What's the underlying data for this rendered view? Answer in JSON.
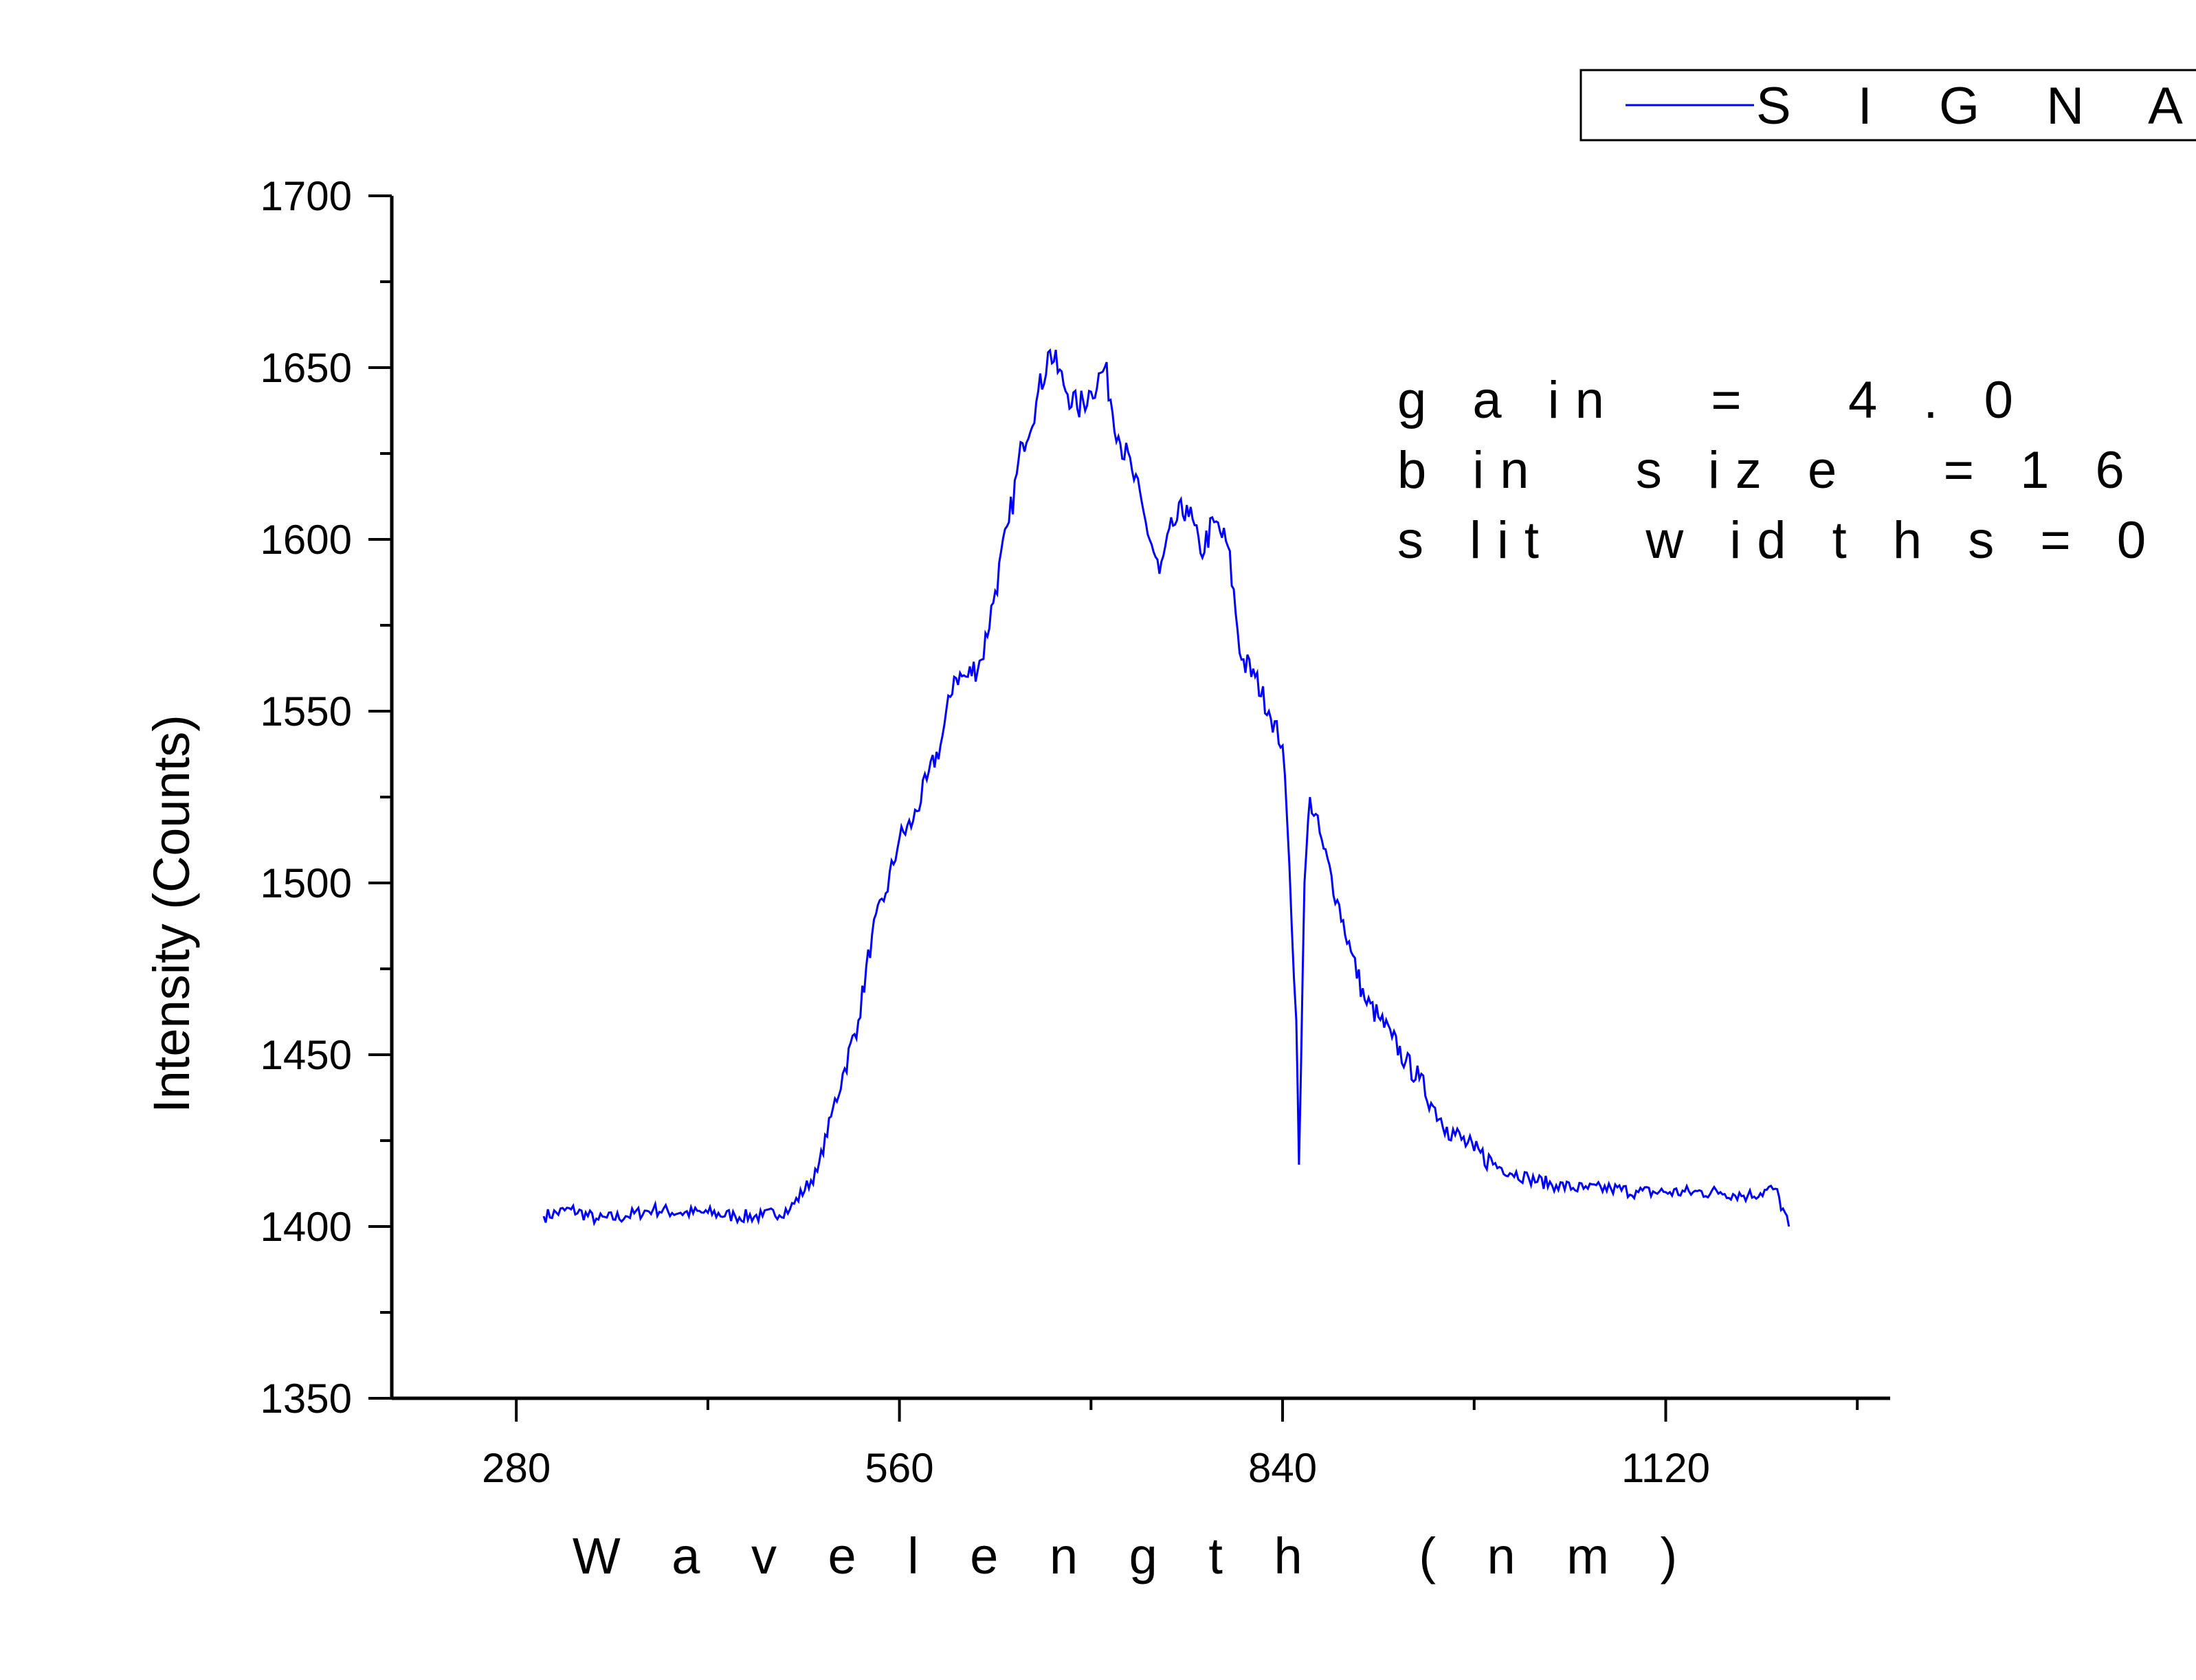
{
  "chart_data": {
    "type": "line",
    "xlabel": "W a v e l e n g t h   ( n m )",
    "ylabel": "Intensity (Counts)",
    "xlim": [
      189,
      1284
    ],
    "ylim": [
      1350,
      1700
    ],
    "xticks": [
      280,
      560,
      840,
      1120
    ],
    "yticks": [
      1350,
      1400,
      1450,
      1500,
      1550,
      1600,
      1650,
      1700
    ],
    "grid": false,
    "legend_position": "top-right",
    "line_color": "#0000ff",
    "annotations": [
      "g a in   =   4 . 0",
      "b in   s iz e   = 1 6",
      "s lit   w id t h s = 0"
    ],
    "series": [
      {
        "name": "S I G N A L _",
        "x": [
          300,
          320,
          340,
          360,
          380,
          400,
          420,
          440,
          460,
          480,
          500,
          510,
          520,
          530,
          540,
          550,
          560,
          570,
          580,
          590,
          600,
          610,
          620,
          630,
          640,
          650,
          660,
          670,
          680,
          690,
          700,
          710,
          720,
          730,
          740,
          750,
          760,
          770,
          780,
          790,
          800,
          810,
          820,
          830,
          840,
          845,
          850,
          852,
          856,
          860,
          870,
          880,
          890,
          900,
          910,
          920,
          930,
          940,
          950,
          960,
          980,
          1000,
          1020,
          1040,
          1060,
          1080,
          1100,
          1120,
          1140,
          1160,
          1180,
          1200,
          1210
        ],
        "y": [
          1403,
          1405,
          1402,
          1403,
          1405,
          1404,
          1404,
          1403,
          1403,
          1405,
          1416,
          1432,
          1446,
          1460,
          1485,
          1497,
          1513,
          1518,
          1530,
          1540,
          1560,
          1560,
          1565,
          1585,
          1605,
          1628,
          1640,
          1655,
          1645,
          1638,
          1643,
          1650,
          1630,
          1620,
          1605,
          1590,
          1604,
          1610,
          1596,
          1605,
          1598,
          1565,
          1560,
          1550,
          1540,
          1505,
          1460,
          1418,
          1500,
          1525,
          1510,
          1495,
          1480,
          1466,
          1461,
          1455,
          1448,
          1443,
          1435,
          1429,
          1422,
          1417,
          1414,
          1412,
          1411,
          1411,
          1410,
          1410,
          1410,
          1410,
          1409,
          1411,
          1400
        ]
      }
    ]
  }
}
